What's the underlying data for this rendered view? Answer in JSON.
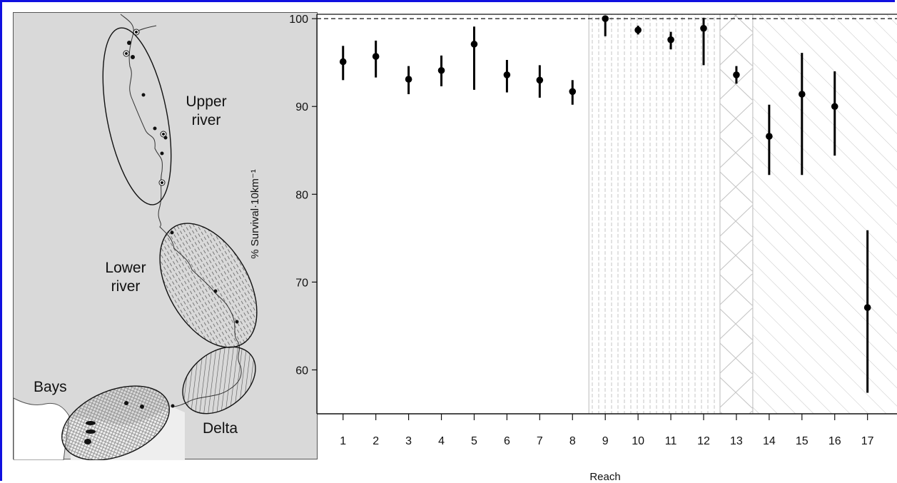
{
  "chart_data": {
    "type": "scatter",
    "ylabel": "% Survival·10km⁻¹",
    "xlabel": "Reach",
    "ylim": [
      55,
      100.5
    ],
    "xlim": [
      0.2,
      17.9
    ],
    "reference_line": 100,
    "y_ticks": [
      60,
      70,
      80,
      90,
      100
    ],
    "x_ticks": [
      1,
      2,
      3,
      4,
      5,
      6,
      7,
      8,
      9,
      10,
      11,
      12,
      13,
      14,
      15,
      16,
      17
    ],
    "regions": [
      {
        "name": "Upper river",
        "from": 0.2,
        "to": 8.5,
        "pattern": "none"
      },
      {
        "name": "Lower river",
        "from": 8.5,
        "to": 12.5,
        "pattern": "vertical-dashed"
      },
      {
        "name": "Bays",
        "from": 12.5,
        "to": 13.5,
        "pattern": "chevron"
      },
      {
        "name": "Delta",
        "from": 13.5,
        "to": 17.9,
        "pattern": "diagonal"
      }
    ],
    "points": [
      {
        "x": 1,
        "y": 95.1,
        "lo": 93.0,
        "hi": 96.9
      },
      {
        "x": 2,
        "y": 95.7,
        "lo": 93.3,
        "hi": 97.5
      },
      {
        "x": 3,
        "y": 93.1,
        "lo": 91.4,
        "hi": 94.6
      },
      {
        "x": 4,
        "y": 94.1,
        "lo": 92.3,
        "hi": 95.8
      },
      {
        "x": 5,
        "y": 97.1,
        "lo": 91.9,
        "hi": 99.1
      },
      {
        "x": 6,
        "y": 93.6,
        "lo": 91.6,
        "hi": 95.3
      },
      {
        "x": 7,
        "y": 93.0,
        "lo": 91.0,
        "hi": 94.7
      },
      {
        "x": 8,
        "y": 91.7,
        "lo": 90.2,
        "hi": 93.0
      },
      {
        "x": 9,
        "y": 100.0,
        "lo": 98.0,
        "hi": 100.2
      },
      {
        "x": 10,
        "y": 98.7,
        "lo": 98.2,
        "hi": 99.2
      },
      {
        "x": 11,
        "y": 97.6,
        "lo": 96.5,
        "hi": 98.5
      },
      {
        "x": 12,
        "y": 98.9,
        "lo": 94.7,
        "hi": 100.1
      },
      {
        "x": 13,
        "y": 93.6,
        "lo": 92.6,
        "hi": 94.6
      },
      {
        "x": 14,
        "y": 86.6,
        "lo": 82.2,
        "hi": 90.2
      },
      {
        "x": 15,
        "y": 91.4,
        "lo": 82.2,
        "hi": 96.1
      },
      {
        "x": 16,
        "y": 90.0,
        "lo": 84.4,
        "hi": 94.0
      },
      {
        "x": 17,
        "y": 67.1,
        "lo": 57.4,
        "hi": 75.9
      }
    ]
  },
  "map": {
    "labels": {
      "upper_line1": "Upper",
      "upper_line2": "river",
      "lower_line1": "Lower",
      "lower_line2": "river",
      "bays": "Bays",
      "delta": "Delta"
    },
    "colors": {
      "land": "#d9d9d9",
      "water": "#ffffff",
      "river": "#333333"
    }
  },
  "colors": {
    "frame": "#1010e0",
    "marker": "#000000",
    "pattern": "#bdbdbd"
  }
}
